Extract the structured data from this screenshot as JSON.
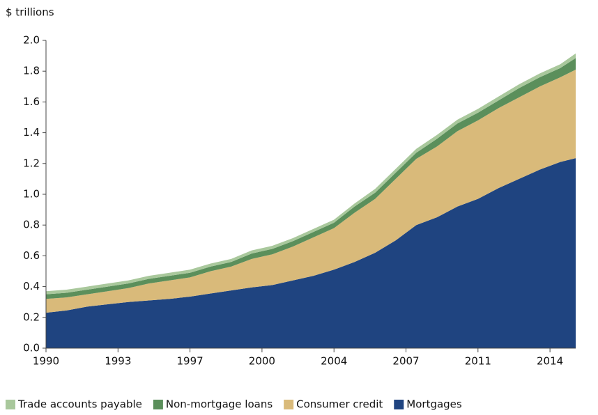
{
  "chart_data": {
    "type": "stacked_area",
    "y_label": "$ trillions",
    "x": [
      1990,
      1991,
      1992,
      1993,
      1994,
      1995,
      1996,
      1997,
      1998,
      1999,
      2000,
      2001,
      2002,
      2003,
      2004,
      2005,
      2006,
      2007,
      2008,
      2009,
      2010,
      2011,
      2012,
      2013,
      2014,
      2015,
      2015.75
    ],
    "series": [
      {
        "name": "Trade accounts payable",
        "color": "#a9c89c",
        "values": [
          0.02,
          0.02,
          0.02,
          0.02,
          0.02,
          0.02,
          0.02,
          0.02,
          0.02,
          0.02,
          0.02,
          0.02,
          0.02,
          0.02,
          0.02,
          0.02,
          0.025,
          0.025,
          0.025,
          0.025,
          0.025,
          0.025,
          0.025,
          0.025,
          0.025,
          0.025,
          0.03
        ]
      },
      {
        "name": "Non-mortgage loans",
        "color": "#5b8f5b",
        "values": [
          0.03,
          0.03,
          0.03,
          0.03,
          0.03,
          0.03,
          0.03,
          0.03,
          0.03,
          0.03,
          0.035,
          0.035,
          0.035,
          0.035,
          0.035,
          0.04,
          0.04,
          0.04,
          0.04,
          0.05,
          0.05,
          0.05,
          0.05,
          0.06,
          0.06,
          0.06,
          0.075
        ]
      },
      {
        "name": "Consumer credit",
        "color": "#d9ba7a",
        "values": [
          0.09,
          0.085,
          0.08,
          0.085,
          0.09,
          0.11,
          0.12,
          0.125,
          0.145,
          0.155,
          0.185,
          0.2,
          0.22,
          0.25,
          0.27,
          0.32,
          0.35,
          0.4,
          0.43,
          0.46,
          0.49,
          0.51,
          0.52,
          0.53,
          0.54,
          0.55,
          0.575
        ]
      },
      {
        "name": "Mortgages",
        "color": "#1f4480",
        "values": [
          0.23,
          0.245,
          0.27,
          0.285,
          0.3,
          0.31,
          0.32,
          0.335,
          0.355,
          0.375,
          0.395,
          0.41,
          0.44,
          0.47,
          0.51,
          0.56,
          0.62,
          0.7,
          0.8,
          0.85,
          0.92,
          0.97,
          1.04,
          1.1,
          1.16,
          1.21,
          1.235
        ]
      }
    ],
    "xlim": [
      1990,
      2015.75
    ],
    "xticks": [
      1990,
      {
        "value": 1993.5,
        "label": "1993"
      },
      1997,
      {
        "value": 2000.5,
        "label": "2000"
      },
      2004,
      {
        "value": 2007.5,
        "label": "2007"
      },
      2011,
      {
        "value": 2014.5,
        "label": "2014"
      }
    ],
    "ylim": [
      0,
      2
    ],
    "yticks": [
      {
        "value": 0,
        "label": "0.0"
      },
      0.2,
      0.4,
      0.6,
      0.8,
      {
        "value": 1,
        "label": "1.0"
      },
      1.2,
      1.4,
      1.6,
      1.8,
      {
        "value": 2,
        "label": "2.0"
      }
    ],
    "legend": "bottom"
  }
}
